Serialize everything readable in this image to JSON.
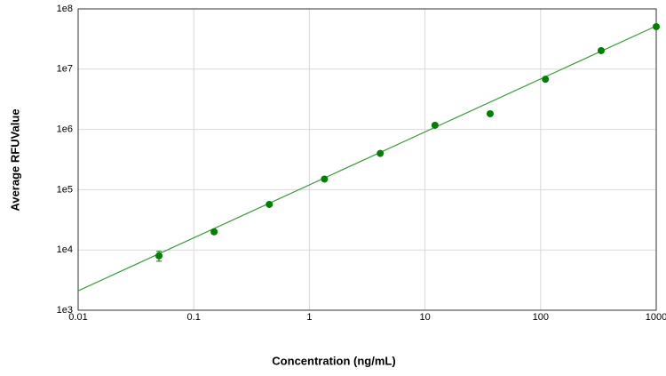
{
  "chart_data": {
    "type": "scatter",
    "x_label": "Concentration (ng/mL)",
    "y_label": "Average RFUValue",
    "x_scale": "log",
    "y_scale": "log",
    "grid": true,
    "color": "#008000",
    "xlim": [
      0.01,
      1000
    ],
    "ylim": [
      1000,
      100000000
    ],
    "xticks": [
      0.01,
      0.1,
      1,
      10,
      100,
      1000
    ],
    "yticks": [
      {
        "value": 1000,
        "label": "1e3"
      },
      {
        "value": 10000,
        "label": "1e4"
      },
      {
        "value": 100000,
        "label": "1e5"
      },
      {
        "value": 1000000,
        "label": "1e6"
      },
      {
        "value": 10000000,
        "label": "1e7"
      },
      {
        "value": 100000000,
        "label": "1e8"
      }
    ],
    "series": [
      {
        "color": "#008000",
        "x": [
          0.05,
          0.15,
          0.45,
          1.35,
          4.1,
          12.2,
          36.6,
          110,
          334,
          1000
        ],
        "values": [
          8000,
          20000,
          57000,
          150000,
          400000,
          1170000,
          1820000,
          6800000,
          20300000,
          50700000
        ],
        "errors": [
          1500,
          1500,
          null,
          null,
          null,
          null,
          null,
          null,
          null,
          null
        ]
      }
    ],
    "fit": {
      "color": "#3a9a3a",
      "x": [
        0.01,
        1000
      ],
      "values": [
        2100,
        52000000
      ]
    }
  }
}
